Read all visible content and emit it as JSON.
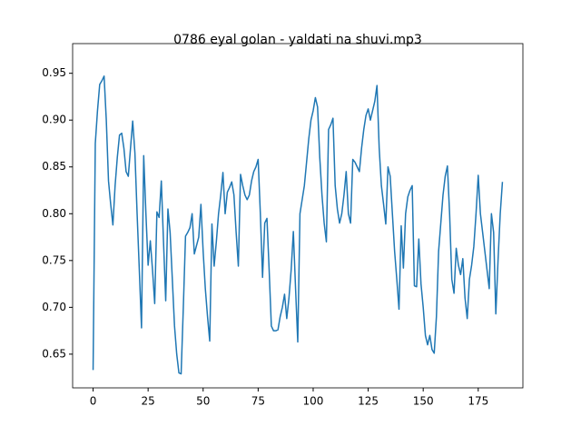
{
  "chart_data": {
    "type": "line",
    "title": "0786 eyal golan - yaldati na shuvi.mp3",
    "x": [
      0,
      1,
      2,
      3,
      4,
      5,
      6,
      7,
      8,
      9,
      10,
      11,
      12,
      13,
      14,
      15,
      16,
      17,
      18,
      19,
      20,
      21,
      22,
      23,
      24,
      25,
      26,
      27,
      28,
      29,
      30,
      31,
      32,
      33,
      34,
      35,
      36,
      37,
      38,
      39,
      40,
      41,
      42,
      43,
      44,
      45,
      46,
      47,
      48,
      49,
      50,
      51,
      52,
      53,
      54,
      55,
      56,
      57,
      58,
      59,
      60,
      61,
      62,
      63,
      64,
      65,
      66,
      67,
      68,
      69,
      70,
      71,
      72,
      73,
      74,
      75,
      76,
      77,
      78,
      79,
      80,
      81,
      82,
      83,
      84,
      85,
      86,
      87,
      88,
      89,
      90,
      91,
      92,
      93,
      94,
      95,
      96,
      97,
      98,
      99,
      100,
      101,
      102,
      103,
      104,
      105,
      106,
      107,
      108,
      109,
      110,
      111,
      112,
      113,
      114,
      115,
      116,
      117,
      118,
      119,
      120,
      121,
      122,
      123,
      124,
      125,
      126,
      127,
      128,
      129,
      130,
      131,
      132,
      133,
      134,
      135,
      136,
      137,
      138,
      139,
      140,
      141,
      142,
      143,
      144,
      145,
      146,
      147,
      148,
      149,
      150,
      151,
      152,
      153,
      154,
      155,
      156,
      157,
      158,
      159,
      160,
      161,
      162,
      163,
      164,
      165,
      166,
      167,
      168,
      169,
      170,
      171,
      172,
      173,
      174,
      175,
      176,
      177,
      178,
      179,
      180,
      181,
      182,
      183,
      184,
      185,
      186
    ],
    "series": [
      {
        "color": "#1f77b4",
        "values": [
          0.633,
          0.875,
          0.91,
          0.938,
          0.942,
          0.947,
          0.9,
          0.835,
          0.81,
          0.788,
          0.83,
          0.86,
          0.884,
          0.886,
          0.87,
          0.845,
          0.84,
          0.87,
          0.899,
          0.865,
          0.8,
          0.74,
          0.678,
          0.862,
          0.8,
          0.745,
          0.771,
          0.74,
          0.704,
          0.802,
          0.796,
          0.835,
          0.77,
          0.707,
          0.805,
          0.78,
          0.73,
          0.68,
          0.65,
          0.63,
          0.629,
          0.7,
          0.776,
          0.78,
          0.785,
          0.8,
          0.757,
          0.766,
          0.775,
          0.81,
          0.76,
          0.72,
          0.69,
          0.664,
          0.789,
          0.744,
          0.77,
          0.8,
          0.82,
          0.844,
          0.8,
          0.823,
          0.828,
          0.834,
          0.82,
          0.78,
          0.744,
          0.842,
          0.83,
          0.82,
          0.815,
          0.82,
          0.835,
          0.845,
          0.85,
          0.858,
          0.8,
          0.732,
          0.79,
          0.795,
          0.74,
          0.68,
          0.675,
          0.675,
          0.676,
          0.69,
          0.7,
          0.714,
          0.688,
          0.71,
          0.74,
          0.781,
          0.72,
          0.663,
          0.8,
          0.815,
          0.83,
          0.855,
          0.88,
          0.9,
          0.91,
          0.924,
          0.914,
          0.86,
          0.82,
          0.79,
          0.77,
          0.89,
          0.895,
          0.902,
          0.83,
          0.805,
          0.79,
          0.8,
          0.82,
          0.845,
          0.8,
          0.79,
          0.858,
          0.855,
          0.85,
          0.845,
          0.87,
          0.89,
          0.905,
          0.912,
          0.9,
          0.91,
          0.92,
          0.937,
          0.87,
          0.83,
          0.81,
          0.789,
          0.85,
          0.84,
          0.8,
          0.76,
          0.73,
          0.698,
          0.787,
          0.742,
          0.8,
          0.818,
          0.825,
          0.83,
          0.723,
          0.722,
          0.773,
          0.725,
          0.7,
          0.67,
          0.66,
          0.67,
          0.655,
          0.651,
          0.69,
          0.76,
          0.79,
          0.82,
          0.84,
          0.851,
          0.8,
          0.73,
          0.715,
          0.763,
          0.745,
          0.735,
          0.752,
          0.71,
          0.688,
          0.73,
          0.745,
          0.765,
          0.8,
          0.841,
          0.8,
          0.78,
          0.76,
          0.74,
          0.72,
          0.8,
          0.78,
          0.693,
          0.75,
          0.8,
          0.834
        ]
      }
    ],
    "xlim": [
      -9.3,
      195.3
    ],
    "xticks": [
      0,
      25,
      50,
      75,
      100,
      125,
      150,
      175
    ],
    "ylim": [
      0.614,
      0.972
    ],
    "yticks": [
      0.65,
      {
        "value": 0.7,
        "label": "0.70"
      },
      0.75,
      {
        "value": 0.8,
        "label": "0.80"
      },
      0.85,
      {
        "value": 0.9,
        "label": "0.90"
      },
      0.95
    ],
    "grid": false
  }
}
